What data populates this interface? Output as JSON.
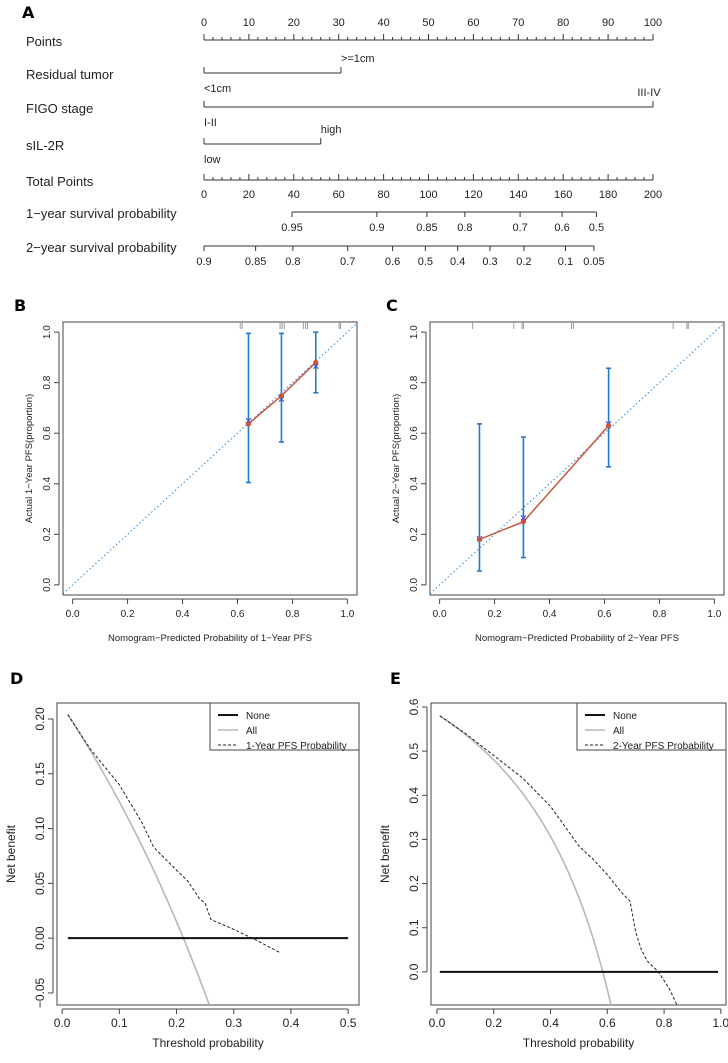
{
  "chart_data": [
    {
      "panel": "A",
      "type": "nomogram",
      "points_axis": {
        "label": "Points",
        "range": [
          0,
          100
        ],
        "ticks": [
          0,
          10,
          20,
          30,
          40,
          50,
          60,
          70,
          80,
          90,
          100
        ],
        "tick_labels": [
          "0",
          "10",
          "20",
          "30",
          "40",
          "50",
          "60",
          "70",
          "80",
          "90",
          "100"
        ]
      },
      "variables": [
        {
          "label": "Residual tumor",
          "levels": [
            {
              "label": "<1cm",
              "points": 0
            },
            {
              "label": ">=1cm",
              "points": 30.5
            }
          ]
        },
        {
          "label": "FIGO stage",
          "levels": [
            {
              "label": "I-II",
              "points": 0
            },
            {
              "label": "III-IV",
              "points": 100
            }
          ]
        },
        {
          "label": "sIL-2R",
          "levels": [
            {
              "label": "low",
              "points": 0
            },
            {
              "label": "high",
              "points": 26
            }
          ]
        }
      ],
      "total_points_axis": {
        "label": "Total Points",
        "range": [
          0,
          200
        ],
        "ticks": [
          0,
          20,
          40,
          60,
          80,
          100,
          120,
          140,
          160,
          180,
          200
        ],
        "tick_labels": [
          "0",
          "20",
          "40",
          "60",
          "80",
          "100",
          "120",
          "140",
          "160",
          "180",
          "200"
        ]
      },
      "survival_scales": [
        {
          "label": "1−year survival probability",
          "ticks": [
            {
              "label": "0.95",
              "total_points": 39.2
            },
            {
              "label": "0.9",
              "total_points": 77
            },
            {
              "label": "0.85",
              "total_points": 99.3
            },
            {
              "label": "0.8",
              "total_points": 116.2
            },
            {
              "label": "0.7",
              "total_points": 140.8
            },
            {
              "label": "0.6",
              "total_points": 159.5
            },
            {
              "label": "0.5",
              "total_points": 174.8
            }
          ]
        },
        {
          "label": "2−year survival probability",
          "ticks": [
            {
              "label": "0.9",
              "total_points": 0
            },
            {
              "label": "0.85",
              "total_points": 23
            },
            {
              "label": "0.8",
              "total_points": 39.6
            },
            {
              "label": "0.7",
              "total_points": 64
            },
            {
              "label": "0.6",
              "total_points": 84
            },
            {
              "label": "0.5",
              "total_points": 98.6
            },
            {
              "label": "0.4",
              "total_points": 113
            },
            {
              "label": "0.3",
              "total_points": 127.4
            },
            {
              "label": "0.2",
              "total_points": 142.5
            },
            {
              "label": "0.1",
              "total_points": 161
            },
            {
              "label": "0.05",
              "total_points": 173.7
            }
          ]
        }
      ]
    },
    {
      "panel": "B",
      "type": "line",
      "subtype": "calibration",
      "xlabel": "Nomogram−Predicted Probability of 1−Year PFS",
      "ylabel": "Actual 1−Year PFS(proportion)",
      "xlim": [
        -0.035,
        1.035
      ],
      "ylim": [
        -0.04,
        1.04
      ],
      "xticks": [
        "0.0",
        "0.2",
        "0.4",
        "0.6",
        "0.8",
        "1.0"
      ],
      "yticks": [
        "0.0",
        "0.2",
        "0.4",
        "0.6",
        "0.8",
        "1.0"
      ],
      "ideal_line": "y = x",
      "points": [
        {
          "predicted": 0.64,
          "observed": 0.637,
          "corrected": 0.65,
          "ci": [
            0.405,
            0.995
          ]
        },
        {
          "predicted": 0.76,
          "observed": 0.748,
          "corrected": 0.735,
          "ci": [
            0.565,
            0.995
          ]
        },
        {
          "predicted": 0.885,
          "observed": 0.88,
          "corrected": 0.865,
          "ci": [
            0.76,
            1.0
          ]
        }
      ],
      "rug": [
        0.61,
        0.617,
        0.755,
        0.762,
        0.77,
        0.84,
        0.848,
        0.855,
        0.97,
        0.975
      ]
    },
    {
      "panel": "C",
      "type": "line",
      "subtype": "calibration",
      "xlabel": "Nomogram−Predicted Probability of 2−Year PFS",
      "ylabel": "Actual 2−Year PFS(proportion)",
      "xlim": [
        -0.035,
        1.035
      ],
      "ylim": [
        -0.04,
        1.04
      ],
      "xticks": [
        "0.0",
        "0.2",
        "0.4",
        "0.6",
        "0.8",
        "1.0"
      ],
      "yticks": [
        "0.0",
        "0.2",
        "0.4",
        "0.6",
        "0.8",
        "1.0"
      ],
      "ideal_line": "y = x",
      "points": [
        {
          "predicted": 0.145,
          "observed": 0.18,
          "corrected": 0.183,
          "ci": [
            0.055,
            0.637
          ]
        },
        {
          "predicted": 0.305,
          "observed": 0.25,
          "corrected": 0.265,
          "ci": [
            0.108,
            0.585
          ]
        },
        {
          "predicted": 0.615,
          "observed": 0.63,
          "corrected": 0.637,
          "ci": [
            0.467,
            0.857
          ]
        }
      ],
      "rug": [
        0.12,
        0.27,
        0.3,
        0.305,
        0.48,
        0.487,
        0.85,
        0.9,
        0.905
      ]
    },
    {
      "panel": "D",
      "type": "line",
      "subtype": "decision-curve",
      "xlabel": "Threshold probability",
      "ylabel": "Net benefit",
      "xlim": [
        -0.009,
        0.519
      ],
      "ylim": [
        -0.061,
        0.2146
      ],
      "xticks": [
        "0.0",
        "0.1",
        "0.2",
        "0.3",
        "0.4",
        "0.5"
      ],
      "yticks": [
        "−0.05",
        "0.00",
        "0.05",
        "0.10",
        "0.15",
        "0.20"
      ],
      "legend": {
        "position": "top-right",
        "entries": [
          "None",
          "All",
          "1-Year PFS Probability"
        ]
      },
      "prevalence": 0.212,
      "threshold_range": [
        0.01,
        0.5
      ],
      "series": [
        {
          "name": "None",
          "x": [
            0.01,
            0.5
          ],
          "y": [
            0,
            0
          ]
        },
        {
          "name": "1-Year PFS Probability",
          "x": [
            0.01,
            0.05,
            0.1,
            0.14,
            0.16,
            0.2,
            0.22,
            0.24,
            0.25,
            0.26,
            0.3,
            0.34,
            0.38
          ],
          "y": [
            0.204,
            0.172,
            0.14,
            0.105,
            0.083,
            0.062,
            0.052,
            0.036,
            0.032,
            0.017,
            0.008,
            -0.002,
            -0.013
          ]
        }
      ]
    },
    {
      "panel": "E",
      "type": "line",
      "subtype": "decision-curve",
      "xlabel": "Threshold probability",
      "ylabel": "Net benefit",
      "xlim": [
        -0.021,
        1.018
      ],
      "ylim": [
        -0.075,
        0.609
      ],
      "xticks": [
        "0.0",
        "0.2",
        "0.4",
        "0.6",
        "0.8",
        "1.0"
      ],
      "yticks": [
        "0.0",
        "0.1",
        "0.2",
        "0.3",
        "0.4",
        "0.5",
        "0.6"
      ],
      "legend": {
        "position": "top-right",
        "entries": [
          "None",
          "All",
          "2-Year PFS Probability"
        ]
      },
      "prevalence": 0.584,
      "threshold_range": [
        0.01,
        0.99
      ],
      "series": [
        {
          "name": "None",
          "x": [
            0.01,
            0.99
          ],
          "y": [
            0,
            0
          ]
        },
        {
          "name": "2-Year PFS Probability",
          "x": [
            0.01,
            0.1,
            0.15,
            0.2,
            0.3,
            0.4,
            0.45,
            0.5,
            0.55,
            0.6,
            0.65,
            0.68,
            0.7,
            0.72,
            0.74,
            0.78,
            0.82,
            0.845
          ],
          "y": [
            0.58,
            0.54,
            0.515,
            0.49,
            0.44,
            0.375,
            0.33,
            0.285,
            0.255,
            0.22,
            0.18,
            0.16,
            0.09,
            0.05,
            0.025,
            0.0,
            -0.04,
            -0.075
          ]
        }
      ]
    }
  ],
  "panel_letters": [
    "A",
    "B",
    "C",
    "D",
    "E"
  ]
}
